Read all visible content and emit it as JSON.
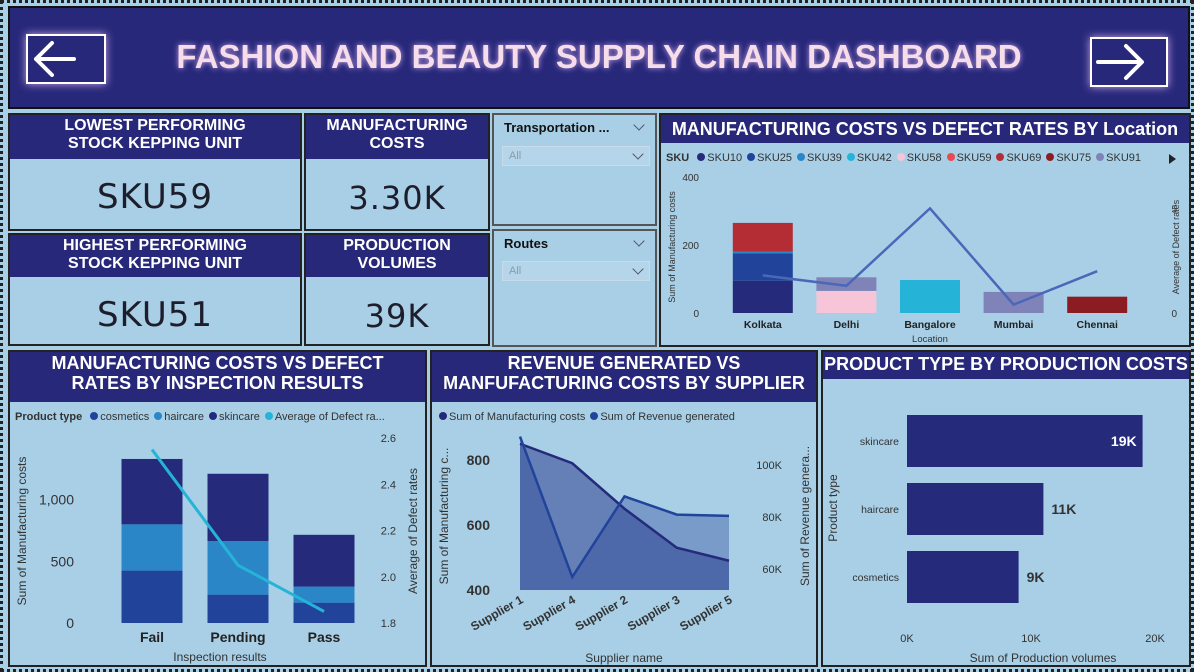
{
  "header": {
    "title": "FASHION AND BEAUTY SUPPLY CHAIN DASHBOARD",
    "back_icon": "arrow-left-icon",
    "forward_icon": "arrow-right-icon"
  },
  "cards": {
    "lowest_sku": {
      "label": "LOWEST PERFORMING STOCK KEPPING UNIT",
      "value": "SKU59"
    },
    "highest_sku": {
      "label": "HIGHEST PERFORMING STOCK KEPPING UNIT",
      "value": "SKU51"
    },
    "manufacturing_costs": {
      "label": "MANUFACTURING COSTS",
      "value": "3.30K"
    },
    "production_volumes": {
      "label": "PRODUCTION VOLUMES",
      "value": "39K"
    }
  },
  "slicers": {
    "transportation": {
      "label": "Transportation ...",
      "value": "All"
    },
    "routes": {
      "label": "Routes",
      "value": "All"
    }
  },
  "colors": {
    "bg": "#a8cfe6",
    "header": "#28287a",
    "navy": "#252a7a",
    "blue": "#21449a",
    "mid": "#2a86c7",
    "cyan": "#25b4d8"
  },
  "chart_data": [
    {
      "id": "location",
      "type": "bar",
      "title": "MANUFACTURING COSTS VS DEFECT RATES BY Location",
      "legend_title": "SKU",
      "legend": [
        {
          "name": "SKU10",
          "color": "#252a7a"
        },
        {
          "name": "SKU25",
          "color": "#21449a"
        },
        {
          "name": "SKU39",
          "color": "#2a86c7"
        },
        {
          "name": "SKU42",
          "color": "#25b4d8"
        },
        {
          "name": "SKU58",
          "color": "#f6c6d8"
        },
        {
          "name": "SKU59",
          "color": "#e84a4f"
        },
        {
          "name": "SKU69",
          "color": "#b42d35"
        },
        {
          "name": "SKU75",
          "color": "#8b1d22"
        },
        {
          "name": "SKU91",
          "color": "#7f83b8"
        }
      ],
      "categories": [
        "Kolkata",
        "Delhi",
        "Bangalore",
        "Mumbai",
        "Chennai"
      ],
      "stacks": [
        [
          {
            "sku": "SKU10",
            "value": 95
          },
          {
            "sku": "SKU25",
            "value": 80
          },
          {
            "sku": "SKU39",
            "value": 5
          },
          {
            "sku": "SKU69",
            "value": 85
          }
        ],
        [
          {
            "sku": "SKU58",
            "value": 65
          },
          {
            "sku": "SKU91",
            "value": 40
          }
        ],
        [
          {
            "sku": "SKU42",
            "value": 97
          }
        ],
        [
          {
            "sku": "SKU91",
            "value": 62
          }
        ],
        [
          {
            "sku": "SKU75",
            "value": 48
          }
        ]
      ],
      "line": {
        "name": "Average of Defect rates",
        "values": [
          1.8,
          1.3,
          5.0,
          0.4,
          2.0
        ]
      },
      "xlabel": "Location",
      "ylabel": "Sum of Manufacturing costs",
      "y2label": "Average of Defect rates",
      "yticks": [
        0,
        200,
        400
      ],
      "ylim": [
        0,
        400
      ],
      "y2ticks": [
        0,
        5
      ],
      "y2lim": [
        0,
        6.5
      ]
    },
    {
      "id": "inspection",
      "type": "bar",
      "title": "MANUFACTURING COSTS VS DEFECT RATES BY INSPECTION RESULTS",
      "legend_title": "Product type",
      "legend": [
        {
          "name": "cosmetics",
          "color": "#21449a"
        },
        {
          "name": "haircare",
          "color": "#2a86c7"
        },
        {
          "name": "skincare",
          "color": "#252a7a"
        },
        {
          "name": "Average of Defect ra...",
          "color": "#25b4d8"
        }
      ],
      "categories": [
        "Fail",
        "Pending",
        "Pass"
      ],
      "series": [
        {
          "name": "cosmetics",
          "values": [
            425,
            230,
            165
          ]
        },
        {
          "name": "haircare",
          "values": [
            375,
            435,
            130
          ]
        },
        {
          "name": "skincare",
          "values": [
            530,
            545,
            420
          ]
        }
      ],
      "line": {
        "name": "Average of Defect rates",
        "values": [
          2.55,
          2.05,
          1.85
        ]
      },
      "xlabel": "Inspection results",
      "ylabel": "Sum of Manufacturing costs",
      "y2label": "Average of Defect rates",
      "yticks": [
        "0",
        "500",
        "1,000"
      ],
      "ylim": [
        0,
        1500
      ],
      "y2ticks": [
        "1.8",
        "2.0",
        "2.2",
        "2.4",
        "2.6"
      ],
      "y2lim": [
        1.8,
        2.6
      ]
    },
    {
      "id": "supplier",
      "type": "area",
      "title": "REVENUE GENERATED VS MANFUFACTURING COSTS BY SUPPLIER",
      "legend": [
        {
          "name": "Sum of Manufacturing costs",
          "color": "#252a7a"
        },
        {
          "name": "Sum of Revenue generated",
          "color": "#21449a"
        }
      ],
      "categories": [
        "Supplier 1",
        "Supplier 4",
        "Supplier 2",
        "Supplier 3",
        "Supplier 5"
      ],
      "series": [
        {
          "name": "Sum of Manufacturing costs",
          "values": [
            850,
            790,
            650,
            530,
            490
          ]
        },
        {
          "name": "Sum of Revenue generated",
          "values": [
            111000,
            57000,
            88000,
            81000,
            80500
          ]
        }
      ],
      "xlabel": "Supplier name",
      "ylabel": "Sum of Manufacturing c...",
      "y2label": "Sum of Revenue genera...",
      "yticks": [
        400,
        600,
        800
      ],
      "ylim": [
        400,
        880
      ],
      "y2ticks": [
        "60K",
        "80K",
        "100K"
      ],
      "y2lim": [
        52000,
        112000
      ]
    },
    {
      "id": "product_type",
      "type": "bar",
      "title": "PRODUCT TYPE BY PRODUCTION COSTS",
      "categories": [
        "skincare",
        "haircare",
        "cosmetics"
      ],
      "values": [
        19,
        11,
        9
      ],
      "labels": [
        "19K",
        "11K",
        "9K"
      ],
      "xlabel": "Sum of Production volumes",
      "ylabel": "Product type",
      "xticks": [
        "0K",
        "10K",
        "20K"
      ],
      "xlim": [
        0,
        20
      ]
    }
  ]
}
